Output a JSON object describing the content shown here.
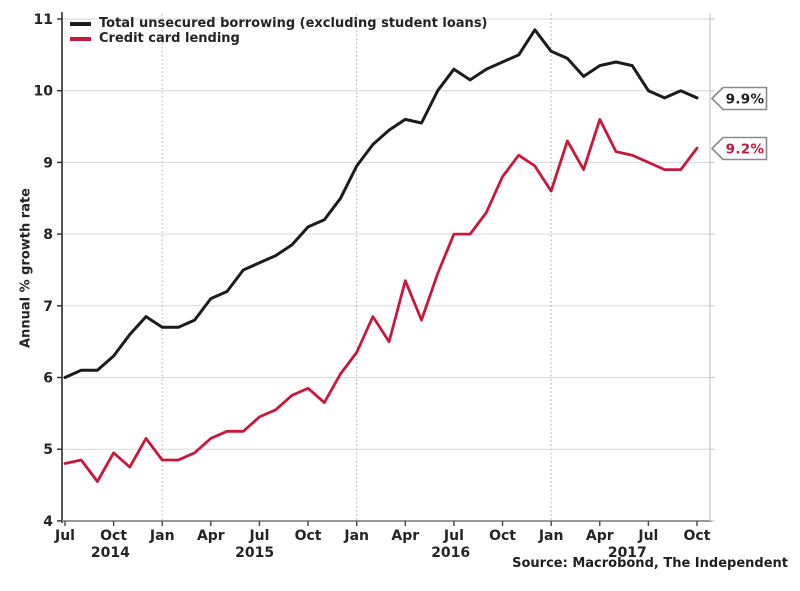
{
  "chart_data": {
    "type": "line",
    "title": "",
    "ylabel": "Annual % growth rate",
    "ylim": [
      4,
      11
    ],
    "yticks": [
      4,
      5,
      6,
      7,
      8,
      9,
      10,
      11
    ],
    "x_unit": "month",
    "x_range": "Jul 2014 - Oct 2017",
    "grid": true,
    "legend_position": "top-left",
    "x_ticks": [
      {
        "m": 0,
        "label": "Jul"
      },
      {
        "m": 3,
        "label": "Oct"
      },
      {
        "m": 6,
        "label": "Jan"
      },
      {
        "m": 9,
        "label": "Apr"
      },
      {
        "m": 12,
        "label": "Jul"
      },
      {
        "m": 15,
        "label": "Oct"
      },
      {
        "m": 18,
        "label": "Jan"
      },
      {
        "m": 21,
        "label": "Apr"
      },
      {
        "m": 24,
        "label": "Jul"
      },
      {
        "m": 27,
        "label": "Oct"
      },
      {
        "m": 30,
        "label": "Jan"
      },
      {
        "m": 33,
        "label": "Apr"
      },
      {
        "m": 36,
        "label": "Jul"
      },
      {
        "m": 39,
        "label": "Oct"
      }
    ],
    "year_labels": [
      {
        "label": "2014",
        "m": 2.8
      },
      {
        "label": "2015",
        "m": 11.7
      },
      {
        "label": "2016",
        "m": 23.8
      },
      {
        "label": "2017",
        "m": 34.7
      }
    ],
    "jan_gridlines_m": [
      6,
      18,
      30
    ],
    "series": [
      {
        "name": "Total unsecured borrowing (excluding student loans)",
        "color": "#1c1c1c",
        "end_label": "9.9%",
        "values": [
          6.0,
          6.1,
          6.1,
          6.3,
          6.6,
          6.85,
          6.7,
          6.7,
          6.8,
          7.1,
          7.2,
          7.5,
          7.6,
          7.7,
          7.85,
          8.1,
          8.2,
          8.5,
          8.95,
          9.25,
          9.45,
          9.6,
          9.55,
          10.0,
          10.3,
          10.15,
          10.3,
          10.4,
          10.5,
          10.85,
          10.55,
          10.45,
          10.2,
          10.35,
          10.4,
          10.35,
          10.0,
          9.9,
          10.0,
          9.9
        ]
      },
      {
        "name": "Credit card lending",
        "color": "#c8193c",
        "end_label": "9.2%",
        "values": [
          4.8,
          4.85,
          4.55,
          4.95,
          4.75,
          5.15,
          4.85,
          4.85,
          4.95,
          5.15,
          5.25,
          5.25,
          5.45,
          5.55,
          5.75,
          5.85,
          5.65,
          6.05,
          6.35,
          6.85,
          6.5,
          7.35,
          6.8,
          7.45,
          8.0,
          8.0,
          8.3,
          8.8,
          9.1,
          8.95,
          8.6,
          9.3,
          8.9,
          9.6,
          9.15,
          9.1,
          9.0,
          8.9,
          8.9,
          9.2
        ]
      }
    ],
    "source": "Source: Macrobond, The Independent"
  },
  "colors": {
    "background": "#ffffff",
    "grid": "#d9d9d9",
    "jan_grid": "#a9a9a9",
    "axis_left": "#2b2b2b",
    "axis_bottom": "#8a8a8a",
    "right_border": "#c9c9c9",
    "tick": "#444444",
    "text": "#242424",
    "callout_border": "#8a8a8a",
    "callout_fill": "#ffffff"
  }
}
